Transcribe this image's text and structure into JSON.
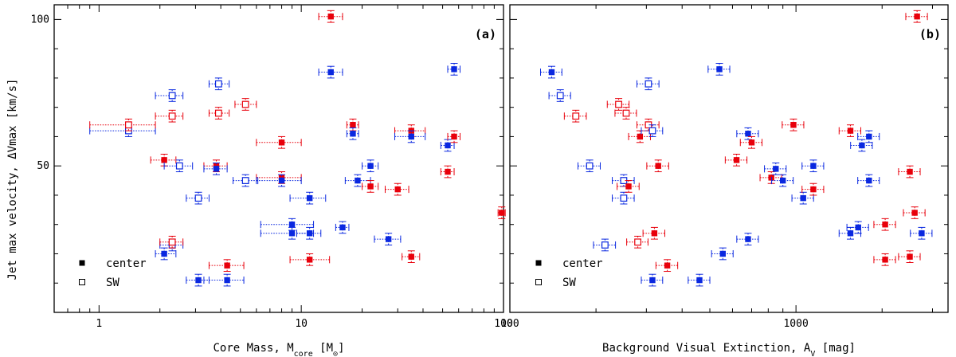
{
  "y_axis_title": "Jet max velocity, ΔVmax [km/s]",
  "legend": {
    "filled_label": "center",
    "open_label": "SW"
  },
  "colors": {
    "red": "#e8000b",
    "blue": "#0a28e0",
    "frame": "#000000"
  },
  "chart_data": [
    {
      "type": "scatter",
      "panel_label": "(a)",
      "x_scale": "log",
      "xlabel": "Core Mass, M",
      "xlabel_sub": "core",
      "xlabel_unit_open": " [M",
      "xlabel_unit_sub": "⊙",
      "xlabel_unit_close": "]",
      "xlim": [
        0.6,
        100
      ],
      "ylim": [
        0,
        105
      ],
      "x_ticks": [
        1,
        10,
        100
      ],
      "x_tick_labels": [
        "1",
        "10",
        "100"
      ],
      "y_ticks": [
        50,
        100
      ],
      "y_tick_labels": [
        "50",
        "100"
      ],
      "points": [
        {
          "x": 1.4,
          "y": 62,
          "xlo": 0.9,
          "xhi": 1.9,
          "color": "blue",
          "marker": "open"
        },
        {
          "x": 1.4,
          "y": 64,
          "xlo": 0.9,
          "xhi": 1.9,
          "color": "red",
          "marker": "open"
        },
        {
          "x": 2.3,
          "y": 74,
          "xlo": 1.9,
          "xhi": 2.6,
          "color": "blue",
          "marker": "open"
        },
        {
          "x": 2.3,
          "y": 67,
          "xlo": 1.9,
          "xhi": 2.6,
          "color": "red",
          "marker": "open"
        },
        {
          "x": 2.1,
          "y": 52,
          "xlo": 1.8,
          "xhi": 2.4,
          "color": "red",
          "marker": "filled"
        },
        {
          "x": 2.5,
          "y": 50,
          "xlo": 2.1,
          "xhi": 2.9,
          "color": "blue",
          "marker": "open"
        },
        {
          "x": 2.1,
          "y": 20,
          "xlo": 1.9,
          "xhi": 2.4,
          "color": "blue",
          "marker": "filled"
        },
        {
          "x": 2.3,
          "y": 23,
          "xlo": 2.0,
          "xhi": 2.6,
          "color": "blue",
          "marker": "open"
        },
        {
          "x": 2.3,
          "y": 24,
          "xlo": 2.0,
          "xhi": 2.6,
          "color": "red",
          "marker": "open"
        },
        {
          "x": 3.1,
          "y": 11,
          "xlo": 2.7,
          "xhi": 3.5,
          "color": "blue",
          "marker": "filled"
        },
        {
          "x": 3.1,
          "y": 39,
          "xlo": 2.7,
          "xhi": 3.5,
          "color": "blue",
          "marker": "open"
        },
        {
          "x": 3.8,
          "y": 50,
          "xlo": 3.3,
          "xhi": 4.3,
          "color": "red",
          "marker": "filled"
        },
        {
          "x": 3.8,
          "y": 49,
          "xlo": 3.3,
          "xhi": 4.3,
          "color": "blue",
          "marker": "filled"
        },
        {
          "x": 3.9,
          "y": 78,
          "xlo": 3.5,
          "xhi": 4.4,
          "color": "blue",
          "marker": "open"
        },
        {
          "x": 3.9,
          "y": 68,
          "xlo": 3.5,
          "xhi": 4.4,
          "color": "red",
          "marker": "open"
        },
        {
          "x": 4.3,
          "y": 11,
          "xlo": 3.3,
          "xhi": 5.2,
          "color": "blue",
          "marker": "filled"
        },
        {
          "x": 4.3,
          "y": 16,
          "xlo": 3.5,
          "xhi": 5.2,
          "color": "red",
          "marker": "filled"
        },
        {
          "x": 5.3,
          "y": 71,
          "xlo": 4.7,
          "xhi": 6.0,
          "color": "red",
          "marker": "open"
        },
        {
          "x": 5.3,
          "y": 45,
          "xlo": 4.6,
          "xhi": 6.1,
          "color": "blue",
          "marker": "open"
        },
        {
          "x": 8,
          "y": 58,
          "xlo": 6.0,
          "xhi": 10.0,
          "color": "red",
          "marker": "filled"
        },
        {
          "x": 8,
          "y": 46,
          "xlo": 6.0,
          "xhi": 10.0,
          "color": "red",
          "marker": "filled"
        },
        {
          "x": 8,
          "y": 45,
          "xlo": 6.0,
          "xhi": 10.0,
          "color": "blue",
          "marker": "filled"
        },
        {
          "x": 9,
          "y": 30,
          "xlo": 6.3,
          "xhi": 11.5,
          "color": "blue",
          "marker": "filled"
        },
        {
          "x": 9,
          "y": 27,
          "xlo": 6.3,
          "xhi": 11.5,
          "color": "blue",
          "marker": "filled"
        },
        {
          "x": 11,
          "y": 27,
          "xlo": 9.5,
          "xhi": 12.5,
          "color": "blue",
          "marker": "filled"
        },
        {
          "x": 11,
          "y": 39,
          "xlo": 8.8,
          "xhi": 13.2,
          "color": "blue",
          "marker": "filled"
        },
        {
          "x": 11,
          "y": 18,
          "xlo": 8.8,
          "xhi": 13.8,
          "color": "red",
          "marker": "filled"
        },
        {
          "x": 14,
          "y": 101,
          "xlo": 12.2,
          "xhi": 16.0,
          "color": "red",
          "marker": "filled"
        },
        {
          "x": 14,
          "y": 82,
          "xlo": 12.2,
          "xhi": 16.0,
          "color": "blue",
          "marker": "filled"
        },
        {
          "x": 16,
          "y": 29,
          "xlo": 14.8,
          "xhi": 17.2,
          "color": "blue",
          "marker": "filled"
        },
        {
          "x": 18,
          "y": 64,
          "xlo": 16.8,
          "xhi": 19.2,
          "color": "red",
          "marker": "filled"
        },
        {
          "x": 18,
          "y": 61,
          "xlo": 16.8,
          "xhi": 19.2,
          "color": "blue",
          "marker": "filled"
        },
        {
          "x": 19,
          "y": 45,
          "xlo": 16.5,
          "xhi": 22.0,
          "color": "blue",
          "marker": "filled"
        },
        {
          "x": 22,
          "y": 50,
          "xlo": 20.0,
          "xhi": 24.0,
          "color": "blue",
          "marker": "filled"
        },
        {
          "x": 22,
          "y": 43,
          "xlo": 20.0,
          "xhi": 24.0,
          "color": "red",
          "marker": "filled"
        },
        {
          "x": 27,
          "y": 25,
          "xlo": 23.0,
          "xhi": 31.0,
          "color": "blue",
          "marker": "filled"
        },
        {
          "x": 30,
          "y": 42,
          "xlo": 26.0,
          "xhi": 34.0,
          "color": "red",
          "marker": "filled"
        },
        {
          "x": 35,
          "y": 62,
          "xlo": 29.0,
          "xhi": 41.0,
          "color": "red",
          "marker": "filled"
        },
        {
          "x": 35,
          "y": 60,
          "xlo": 29.0,
          "xhi": 41.0,
          "color": "blue",
          "marker": "filled"
        },
        {
          "x": 35,
          "y": 19,
          "xlo": 31.5,
          "xhi": 38.5,
          "color": "red",
          "marker": "filled"
        },
        {
          "x": 53,
          "y": 48,
          "xlo": 49.0,
          "xhi": 57.0,
          "color": "red",
          "marker": "filled"
        },
        {
          "x": 53,
          "y": 57,
          "xlo": 49.0,
          "xhi": 57.0,
          "color": "blue",
          "marker": "filled"
        },
        {
          "x": 57,
          "y": 60,
          "xlo": 53.0,
          "xhi": 61.0,
          "color": "red",
          "marker": "filled"
        },
        {
          "x": 57,
          "y": 83,
          "xlo": 53.0,
          "xhi": 61.0,
          "color": "blue",
          "marker": "filled"
        },
        {
          "x": 98,
          "y": 34,
          "xlo": 94.0,
          "xhi": 102.0,
          "color": "red",
          "marker": "filled"
        }
      ]
    },
    {
      "type": "scatter",
      "panel_label": "(b)",
      "x_scale": "log",
      "xlabel": "Background Visual Extinction, A",
      "xlabel_sub": "V",
      "xlabel_unit_open": " [mag]",
      "xlabel_unit_sub": "",
      "xlabel_unit_close": "",
      "xlim": [
        100,
        3400
      ],
      "ylim": [
        0,
        105
      ],
      "x_ticks": [
        100,
        1000
      ],
      "x_tick_labels": [
        "100",
        "1000"
      ],
      "y_ticks": [
        50,
        100
      ],
      "y_tick_labels": [
        "",
        ""
      ],
      "points": [
        {
          "x": 140,
          "y": 82,
          "xlo": 128,
          "xhi": 152,
          "color": "blue",
          "marker": "filled"
        },
        {
          "x": 150,
          "y": 74,
          "xlo": 137,
          "xhi": 163,
          "color": "blue",
          "marker": "open"
        },
        {
          "x": 170,
          "y": 67,
          "xlo": 155,
          "xhi": 185,
          "color": "red",
          "marker": "open"
        },
        {
          "x": 190,
          "y": 50,
          "xlo": 173,
          "xhi": 207,
          "color": "blue",
          "marker": "open"
        },
        {
          "x": 215,
          "y": 23,
          "xlo": 196,
          "xhi": 234,
          "color": "blue",
          "marker": "open"
        },
        {
          "x": 240,
          "y": 71,
          "xlo": 219,
          "xhi": 261,
          "color": "red",
          "marker": "open"
        },
        {
          "x": 250,
          "y": 45,
          "xlo": 228,
          "xhi": 272,
          "color": "blue",
          "marker": "open"
        },
        {
          "x": 250,
          "y": 39,
          "xlo": 228,
          "xhi": 272,
          "color": "blue",
          "marker": "open"
        },
        {
          "x": 255,
          "y": 68,
          "xlo": 233,
          "xhi": 277,
          "color": "red",
          "marker": "open"
        },
        {
          "x": 260,
          "y": 43,
          "xlo": 237,
          "xhi": 283,
          "color": "red",
          "marker": "filled"
        },
        {
          "x": 280,
          "y": 24,
          "xlo": 256,
          "xhi": 304,
          "color": "red",
          "marker": "open"
        },
        {
          "x": 285,
          "y": 60,
          "xlo": 260,
          "xhi": 310,
          "color": "red",
          "marker": "filled"
        },
        {
          "x": 305,
          "y": 78,
          "xlo": 278,
          "xhi": 332,
          "color": "blue",
          "marker": "open"
        },
        {
          "x": 305,
          "y": 64,
          "xlo": 278,
          "xhi": 332,
          "color": "red",
          "marker": "open"
        },
        {
          "x": 315,
          "y": 62,
          "xlo": 288,
          "xhi": 342,
          "color": "blue",
          "marker": "open"
        },
        {
          "x": 315,
          "y": 11,
          "xlo": 288,
          "xhi": 342,
          "color": "blue",
          "marker": "filled"
        },
        {
          "x": 320,
          "y": 27,
          "xlo": 292,
          "xhi": 348,
          "color": "red",
          "marker": "filled"
        },
        {
          "x": 330,
          "y": 50,
          "xlo": 301,
          "xhi": 359,
          "color": "red",
          "marker": "filled"
        },
        {
          "x": 355,
          "y": 16,
          "xlo": 324,
          "xhi": 386,
          "color": "red",
          "marker": "filled"
        },
        {
          "x": 460,
          "y": 11,
          "xlo": 420,
          "xhi": 500,
          "color": "blue",
          "marker": "filled"
        },
        {
          "x": 540,
          "y": 83,
          "xlo": 493,
          "xhi": 587,
          "color": "blue",
          "marker": "filled"
        },
        {
          "x": 555,
          "y": 20,
          "xlo": 507,
          "xhi": 603,
          "color": "blue",
          "marker": "filled"
        },
        {
          "x": 620,
          "y": 52,
          "xlo": 566,
          "xhi": 674,
          "color": "red",
          "marker": "filled"
        },
        {
          "x": 680,
          "y": 25,
          "xlo": 621,
          "xhi": 739,
          "color": "blue",
          "marker": "filled"
        },
        {
          "x": 680,
          "y": 61,
          "xlo": 621,
          "xhi": 739,
          "color": "blue",
          "marker": "filled"
        },
        {
          "x": 700,
          "y": 58,
          "xlo": 639,
          "xhi": 761,
          "color": "red",
          "marker": "filled"
        },
        {
          "x": 820,
          "y": 46,
          "xlo": 749,
          "xhi": 891,
          "color": "red",
          "marker": "filled"
        },
        {
          "x": 850,
          "y": 49,
          "xlo": 776,
          "xhi": 924,
          "color": "blue",
          "marker": "filled"
        },
        {
          "x": 900,
          "y": 45,
          "xlo": 822,
          "xhi": 978,
          "color": "blue",
          "marker": "filled"
        },
        {
          "x": 980,
          "y": 64,
          "xlo": 895,
          "xhi": 1065,
          "color": "red",
          "marker": "filled"
        },
        {
          "x": 1060,
          "y": 39,
          "xlo": 968,
          "xhi": 1152,
          "color": "blue",
          "marker": "filled"
        },
        {
          "x": 1150,
          "y": 42,
          "xlo": 1050,
          "xhi": 1250,
          "color": "red",
          "marker": "filled"
        },
        {
          "x": 1150,
          "y": 50,
          "xlo": 1050,
          "xhi": 1250,
          "color": "blue",
          "marker": "filled"
        },
        {
          "x": 1550,
          "y": 62,
          "xlo": 1415,
          "xhi": 1685,
          "color": "red",
          "marker": "filled"
        },
        {
          "x": 1550,
          "y": 27,
          "xlo": 1415,
          "xhi": 1685,
          "color": "blue",
          "marker": "filled"
        },
        {
          "x": 1650,
          "y": 29,
          "xlo": 1507,
          "xhi": 1793,
          "color": "blue",
          "marker": "filled"
        },
        {
          "x": 1700,
          "y": 57,
          "xlo": 1552,
          "xhi": 1848,
          "color": "blue",
          "marker": "filled"
        },
        {
          "x": 1800,
          "y": 60,
          "xlo": 1644,
          "xhi": 1956,
          "color": "blue",
          "marker": "filled"
        },
        {
          "x": 1800,
          "y": 45,
          "xlo": 1644,
          "xhi": 1956,
          "color": "blue",
          "marker": "filled"
        },
        {
          "x": 2050,
          "y": 30,
          "xlo": 1872,
          "xhi": 2228,
          "color": "red",
          "marker": "filled"
        },
        {
          "x": 2050,
          "y": 18,
          "xlo": 1872,
          "xhi": 2228,
          "color": "red",
          "marker": "filled"
        },
        {
          "x": 2500,
          "y": 48,
          "xlo": 2283,
          "xhi": 2717,
          "color": "red",
          "marker": "filled"
        },
        {
          "x": 2500,
          "y": 19,
          "xlo": 2283,
          "xhi": 2717,
          "color": "red",
          "marker": "filled"
        },
        {
          "x": 2600,
          "y": 34,
          "xlo": 2374,
          "xhi": 2826,
          "color": "red",
          "marker": "filled"
        },
        {
          "x": 2650,
          "y": 101,
          "xlo": 2420,
          "xhi": 2880,
          "color": "red",
          "marker": "filled"
        },
        {
          "x": 2750,
          "y": 27,
          "xlo": 2511,
          "xhi": 2989,
          "color": "blue",
          "marker": "filled"
        }
      ]
    }
  ]
}
